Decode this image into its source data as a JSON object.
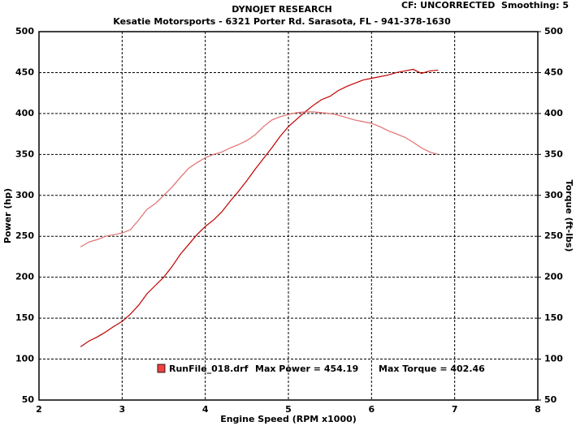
{
  "chart_data": {
    "type": "line",
    "title": "DYNOJET RESEARCH",
    "subtitle": "Kesatie Motorsports - 6321 Porter Rd. Sarasota, FL - 941-378-1630",
    "corner_note": "CF: UNCORRECTED  Smoothing: 5",
    "x_label": "Engine Speed (RPM x1000)",
    "y_label": "Power (hp)",
    "y2_label": "Torque (ft-lbs)",
    "legend": {
      "file": "RunFile_018.drf",
      "power": "Max Power = 454.19",
      "torque": "Max Torque = 402.46",
      "color": "#f04040"
    },
    "x": [
      2.5,
      2.6,
      2.7,
      2.8,
      2.9,
      3.0,
      3.1,
      3.2,
      3.3,
      3.4,
      3.5,
      3.6,
      3.7,
      3.8,
      3.9,
      4.0,
      4.1,
      4.2,
      4.3,
      4.4,
      4.5,
      4.6,
      4.7,
      4.8,
      4.9,
      5.0,
      5.1,
      5.2,
      5.3,
      5.4,
      5.5,
      5.6,
      5.7,
      5.8,
      5.9,
      6.0,
      6.1,
      6.2,
      6.3,
      6.4,
      6.5,
      6.6,
      6.7,
      6.8
    ],
    "series": [
      {
        "color": "#c00000",
        "values": [
          115,
          122,
          127,
          133,
          140,
          146,
          155,
          166,
          180,
          190,
          200,
          213,
          228,
          240,
          252,
          262,
          270,
          280,
          293,
          305,
          318,
          332,
          345,
          358,
          372,
          384,
          393,
          402,
          410,
          417,
          421,
          428,
          433,
          437,
          441,
          443,
          445,
          447,
          450,
          452,
          454,
          449,
          452,
          453
        ]
      },
      {
        "color": "#e07070",
        "axis": "y2",
        "values": [
          237,
          243,
          246,
          250,
          252,
          254,
          258,
          270,
          283,
          290,
          300,
          310,
          322,
          333,
          340,
          346,
          350,
          353,
          358,
          362,
          367,
          374,
          384,
          392,
          396,
          399,
          401,
          402,
          402,
          401,
          400,
          398,
          395,
          392,
          390,
          388,
          384,
          379,
          375,
          371,
          365,
          358,
          353,
          350
        ]
      }
    ],
    "xlim": [
      2,
      8
    ],
    "xticks": [
      2,
      3,
      4,
      5,
      6,
      7,
      8
    ],
    "ylim": [
      50,
      500
    ],
    "yticks": [
      50,
      100,
      150,
      200,
      250,
      300,
      350,
      400,
      450,
      500
    ],
    "y2lim": [
      50,
      500
    ],
    "y2ticks": [
      50,
      100,
      150,
      200,
      250,
      300,
      350,
      400,
      450,
      500
    ],
    "grid": true
  }
}
